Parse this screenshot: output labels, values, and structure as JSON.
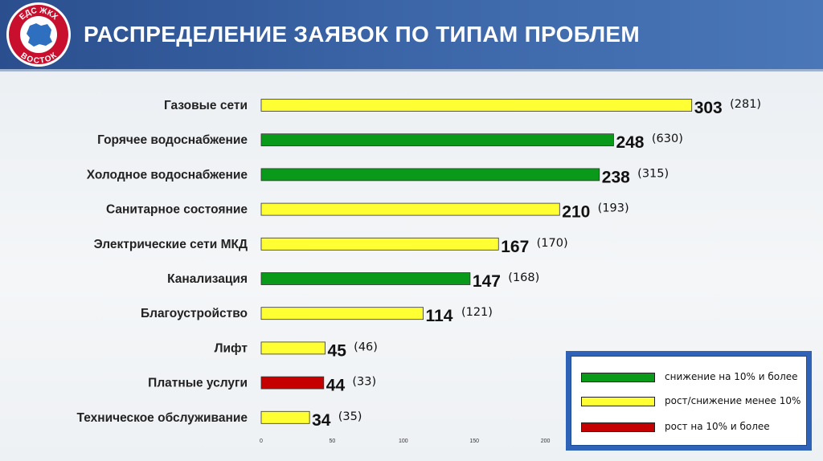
{
  "header": {
    "title": "РАСПРЕДЕЛЕНИЕ ЗАЯВОК ПО ТИПАМ ПРОБЛЕМ",
    "logo_text_top": "ЕДС ЖКХ",
    "logo_text_bottom": "ВОСТОК"
  },
  "colors": {
    "green": "#0a9a1a",
    "yellow": "#ffff33",
    "red": "#c40000",
    "header_blue": "#2b4f8e",
    "legend_blue": "#2f63b8"
  },
  "chart_data": {
    "type": "bar",
    "orientation": "horizontal",
    "categories": [
      "Газовые сети",
      "Горячее водоснабжение",
      "Холодное водоснабжение",
      "Санитарное состояние",
      "Электрические сети МКД",
      "Канализация",
      "Благоустройство",
      "Лифт",
      "Платные услуги",
      "Техническое обслуживание"
    ],
    "values": [
      303,
      248,
      238,
      210,
      167,
      147,
      114,
      45,
      44,
      34
    ],
    "value_labels": [
      "303",
      "248",
      "238",
      "210",
      "167",
      "147",
      "114",
      "45",
      "44",
      "34"
    ],
    "previous_labels": [
      "(281)",
      "(630)",
      "(315)",
      "(193)",
      "(170)",
      "(168)",
      "(121)",
      "(46)",
      "(33)",
      "(35)"
    ],
    "status": [
      "yellow",
      "green",
      "green",
      "yellow",
      "yellow",
      "green",
      "yellow",
      "yellow",
      "red",
      "yellow"
    ],
    "xticks": [
      "0",
      "50",
      "100",
      "150",
      "200"
    ],
    "xlim": [
      0,
      303
    ],
    "grid": false
  },
  "legend": {
    "placement": "bottom-right",
    "items": [
      {
        "label": "снижение на 10% и более",
        "color": "green"
      },
      {
        "label": "рост/снижение менее 10%",
        "color": "yellow"
      },
      {
        "label": "рост на 10% и более",
        "color": "red"
      }
    ]
  }
}
